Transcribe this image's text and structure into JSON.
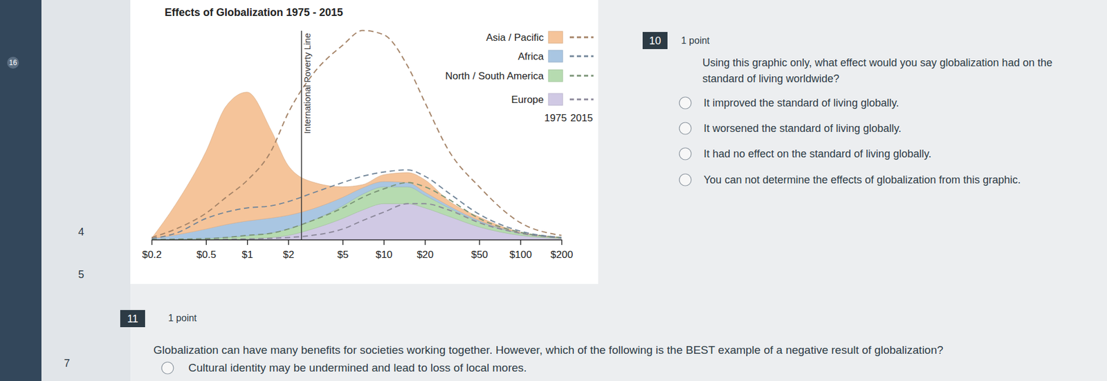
{
  "chart_data": {
    "type": "area",
    "title": "Effects of Globalization 1975 - 2015",
    "x": [
      0.2,
      0.3,
      0.5,
      0.7,
      1,
      1.5,
      2,
      3,
      5,
      7,
      10,
      15,
      20,
      30,
      50,
      100,
      200
    ],
    "xlim": [
      0.2,
      200
    ],
    "xticks": [
      {
        "value": 0.2,
        "label": "$0.2"
      },
      {
        "value": 0.5,
        "label": "$0.5"
      },
      {
        "value": 1,
        "label": "$1"
      },
      {
        "value": 2,
        "label": "$2"
      },
      {
        "value": 5,
        "label": "$5"
      },
      {
        "value": 10,
        "label": "$10"
      },
      {
        "value": 20,
        "label": "$20"
      },
      {
        "value": 50,
        "label": "$50"
      },
      {
        "value": 100,
        "label": "$100"
      },
      {
        "value": 200,
        "label": "$200"
      }
    ],
    "ylim": [
      0,
      100
    ],
    "log": "x",
    "stacked": true,
    "tick_labels": "x",
    "legend": "top-right",
    "legend_years": [
      "1975",
      "2015"
    ],
    "series": [
      {
        "name": "Asia / Pacific",
        "color": "#f5c49a",
        "values": [
          0.1,
          14.5,
          36.7,
          56,
          61,
          41.5,
          23.5,
          12.8,
          5,
          1.5,
          3.2,
          4.7,
          5.8,
          2.3,
          1.7,
          0.3,
          0.2
        ],
        "values_2015": [
          0.5,
          2,
          2.5,
          7,
          13,
          26,
          42,
          56,
          65,
          69,
          65,
          49,
          35,
          20,
          13,
          4,
          1
        ]
      },
      {
        "name": "Africa",
        "color": "#a9c6e2",
        "values": [
          0.5,
          2,
          4.5,
          6,
          7,
          7,
          6.5,
          5.5,
          4,
          3,
          2.5,
          2,
          1.5,
          1,
          0.5,
          0.2,
          0
        ],
        "values_2015": [
          0.5,
          2.8,
          9.5,
          12,
          13,
          13,
          13,
          13,
          12,
          10,
          8,
          6,
          5,
          3,
          2,
          0.5,
          0
        ]
      },
      {
        "name": "North / South America",
        "color": "#b6dbb0",
        "values": [
          0,
          0.2,
          0.5,
          1,
          1.5,
          2.2,
          3,
          4,
          6,
          7.5,
          8,
          8,
          6,
          4,
          2.5,
          1,
          0.3
        ],
        "values_2015": [
          0,
          0.2,
          0.5,
          0.9,
          1.7,
          2.4,
          4,
          7,
          10,
          11,
          11,
          10,
          8,
          5,
          2,
          0.5,
          0.2
        ]
      },
      {
        "name": "Europe",
        "color": "#d0c9e4",
        "values": [
          0,
          0,
          0,
          0.1,
          0.3,
          1,
          2,
          5,
          10,
          14,
          17,
          17,
          15,
          11,
          6,
          2,
          0.5
        ],
        "values_2015": [
          0,
          0,
          0,
          0.1,
          0.3,
          0.6,
          1,
          2,
          5,
          9,
          13,
          17,
          17,
          14,
          8,
          3,
          0.8
        ]
      }
    ],
    "annotations": [
      {
        "x": 2.5,
        "text": "International Poverty Line"
      }
    ]
  },
  "quiz": {
    "questions": [
      {
        "number": "10",
        "points": "1 point",
        "text_lines": [
          "Using this graphic only, what effect would you say globalization had on the",
          "standard of living worldwide?"
        ],
        "options": [
          "It improved the standard of living globally.",
          "It worsened the standard of living globally.",
          "It had no effect on the standard of living globally.",
          "You can not determine the effects of globalization from this graphic."
        ]
      },
      {
        "number": "11",
        "points": "1 point",
        "text_lines": [
          "Globalization can have many benefits for societies working together. However, which of the following is the BEST example of a negative result of globalization?"
        ],
        "options": [
          "Cultural identity may be undermined and lead to loss of local mores."
        ]
      }
    ]
  },
  "sidebar": {
    "items": [
      "16",
      "4",
      "5",
      "7"
    ]
  }
}
